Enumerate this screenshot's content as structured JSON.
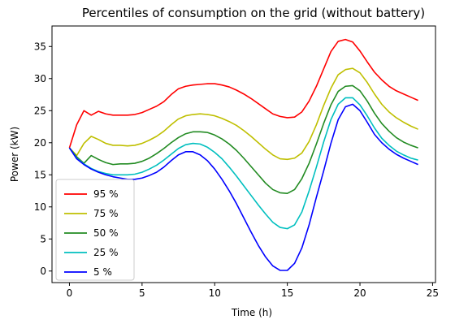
{
  "chart_data": {
    "type": "line",
    "title": "Percentiles of consumption on the grid (without battery)",
    "xlabel": "Time (h)",
    "ylabel": "Power (kW)",
    "xlim": [
      -1.2,
      25.2
    ],
    "ylim": [
      -1.8,
      38.2
    ],
    "xticks": [
      0,
      5,
      10,
      15,
      20,
      25
    ],
    "yticks": [
      0,
      5,
      10,
      15,
      20,
      25,
      30,
      35
    ],
    "grid": false,
    "legend": "lower-left",
    "x": [
      0,
      0.5,
      1,
      1.5,
      2,
      2.5,
      3,
      3.5,
      4,
      4.5,
      5,
      5.5,
      6,
      6.5,
      7,
      7.5,
      8,
      8.5,
      9,
      9.5,
      10,
      10.5,
      11,
      11.5,
      12,
      12.5,
      13,
      13.5,
      14,
      14.5,
      15,
      15.5,
      16,
      16.5,
      17,
      17.5,
      18,
      18.5,
      19,
      19.5,
      20,
      20.5,
      21,
      21.5,
      22,
      22.5,
      23,
      23.5,
      24
    ],
    "series": [
      {
        "name": "95 %",
        "color": "#ff0000",
        "values": [
          19.2,
          22.8,
          25.0,
          24.3,
          24.9,
          24.5,
          24.3,
          24.3,
          24.3,
          24.4,
          24.7,
          25.2,
          25.7,
          26.4,
          27.5,
          28.4,
          28.8,
          29.0,
          29.1,
          29.2,
          29.2,
          29.0,
          28.7,
          28.2,
          27.6,
          26.9,
          26.1,
          25.3,
          24.5,
          24.1,
          23.9,
          24.0,
          24.8,
          26.5,
          28.8,
          31.5,
          34.2,
          35.8,
          36.1,
          35.7,
          34.3,
          32.6,
          31.0,
          29.8,
          28.8,
          28.1,
          27.6,
          27.1,
          26.6
        ]
      },
      {
        "name": "75 %",
        "color": "#bfbf00",
        "values": [
          19.2,
          18.0,
          19.9,
          21.0,
          20.5,
          19.9,
          19.6,
          19.6,
          19.5,
          19.6,
          19.9,
          20.4,
          21.0,
          21.8,
          22.8,
          23.7,
          24.2,
          24.4,
          24.5,
          24.4,
          24.2,
          23.8,
          23.3,
          22.7,
          21.9,
          21.0,
          20.0,
          19.0,
          18.1,
          17.5,
          17.4,
          17.6,
          18.4,
          20.2,
          22.8,
          25.8,
          28.5,
          30.6,
          31.4,
          31.6,
          30.9,
          29.4,
          27.6,
          26.0,
          24.8,
          23.9,
          23.2,
          22.6,
          22.1
        ]
      },
      {
        "name": "50 %",
        "color": "#228b22",
        "values": [
          19.2,
          17.8,
          16.8,
          18.0,
          17.4,
          16.9,
          16.6,
          16.7,
          16.7,
          16.8,
          17.1,
          17.6,
          18.3,
          19.1,
          20.0,
          20.8,
          21.4,
          21.7,
          21.7,
          21.6,
          21.2,
          20.6,
          19.8,
          18.8,
          17.6,
          16.3,
          15.0,
          13.7,
          12.7,
          12.2,
          12.1,
          12.7,
          14.4,
          16.8,
          19.8,
          23.0,
          25.9,
          28.0,
          28.8,
          28.9,
          28.1,
          26.5,
          24.6,
          23.0,
          21.8,
          20.8,
          20.1,
          19.6,
          19.2
        ]
      },
      {
        "name": "25 %",
        "color": "#00bfbf",
        "values": [
          19.2,
          17.6,
          16.7,
          16.0,
          15.5,
          15.2,
          15.0,
          15.0,
          15.0,
          15.1,
          15.4,
          15.9,
          16.5,
          17.3,
          18.2,
          19.1,
          19.7,
          19.9,
          19.8,
          19.3,
          18.5,
          17.5,
          16.2,
          14.8,
          13.3,
          11.8,
          10.3,
          8.9,
          7.6,
          6.8,
          6.6,
          7.2,
          9.2,
          12.5,
          16.2,
          20.1,
          23.6,
          26.0,
          27.0,
          27.0,
          25.9,
          24.2,
          22.3,
          20.7,
          19.6,
          18.7,
          18.1,
          17.6,
          17.3
        ]
      },
      {
        "name": "5 %",
        "color": "#0000ff",
        "values": [
          19.2,
          17.5,
          16.6,
          15.9,
          15.4,
          15.0,
          14.7,
          14.5,
          14.3,
          14.3,
          14.5,
          14.9,
          15.4,
          16.2,
          17.2,
          18.1,
          18.6,
          18.6,
          18.1,
          17.2,
          15.9,
          14.3,
          12.5,
          10.5,
          8.3,
          6.1,
          4.0,
          2.2,
          0.8,
          0.1,
          0.1,
          1.2,
          3.6,
          7.2,
          11.5,
          15.6,
          19.9,
          23.6,
          25.6,
          26.0,
          25.0,
          23.2,
          21.3,
          20.0,
          19.0,
          18.2,
          17.6,
          17.1,
          16.6
        ]
      }
    ]
  }
}
